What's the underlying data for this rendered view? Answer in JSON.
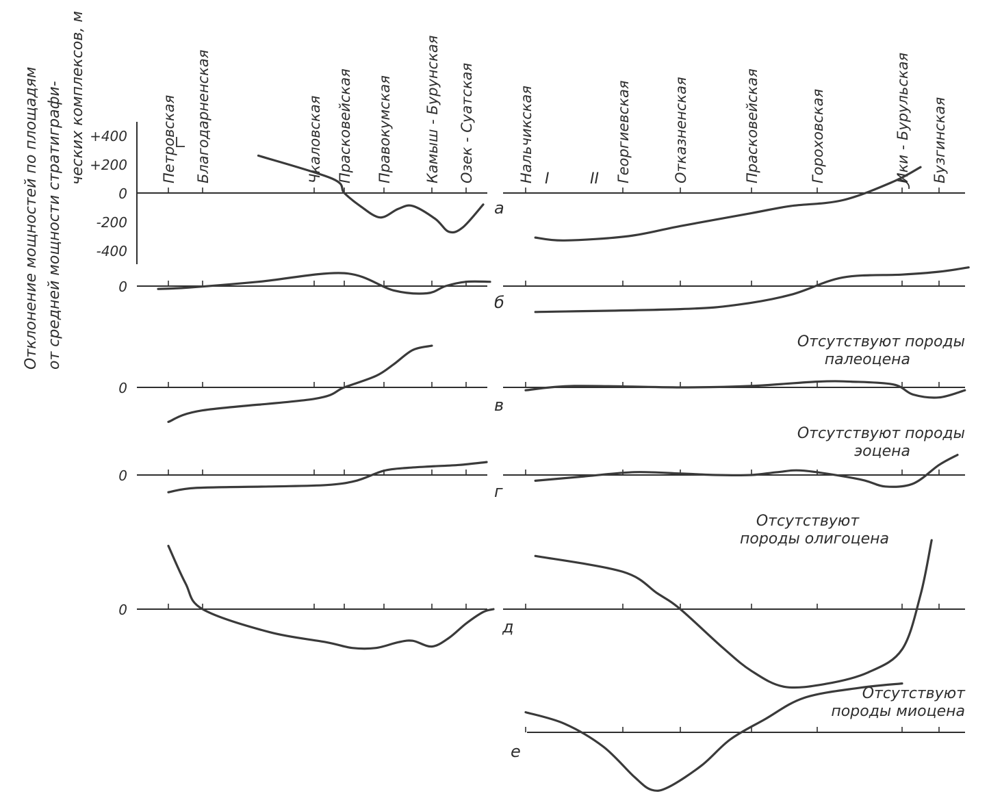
{
  "chart_data": {
    "type": "line",
    "ylabel_lines": [
      "Отклонение мощностей по площадям",
      "от средней мощности стратиграфи-",
      "ческих комплексов, м"
    ],
    "yticks": [
      "+400",
      "+200",
      "0",
      "-200",
      "-400"
    ],
    "ylim": [
      -500,
      500
    ],
    "left_sites": [
      "Петровская",
      "Благодарненская",
      "Чкаловская",
      "Прасковейская",
      "Правокумская",
      "Камыш - Бурунская",
      "Озек - Суатская"
    ],
    "right_sites": [
      "Нальчикская",
      "Георгиевская",
      "Отказненская",
      "Прасковейская",
      "Гороховская",
      "Ики - Бурульская",
      "Бузгинская"
    ],
    "roman_labels": [
      "I",
      "II"
    ],
    "zero_label": "0",
    "panels": [
      {
        "letter": "а",
        "note": "",
        "left_curve": [
          [
            1.5,
            260
          ],
          [
            2.6,
            100
          ],
          [
            3.0,
            0
          ],
          [
            3.4,
            -90
          ],
          [
            3.9,
            -170
          ],
          [
            4.3,
            -110
          ],
          [
            4.6,
            -90
          ],
          [
            5.1,
            -180
          ],
          [
            5.5,
            -270
          ],
          [
            5.9,
            -240
          ],
          [
            6.5,
            -80
          ]
        ],
        "right_curve": [
          [
            0.1,
            -310
          ],
          [
            0.4,
            -330
          ],
          [
            1.1,
            -300
          ],
          [
            2.0,
            -230
          ],
          [
            3.0,
            -140
          ],
          [
            3.6,
            -90
          ],
          [
            4.3,
            -50
          ],
          [
            4.9,
            80
          ],
          [
            5.5,
            180
          ]
        ]
      },
      {
        "letter": "б",
        "note": "",
        "left_curve": [
          [
            -0.3,
            -20
          ],
          [
            0.6,
            -10
          ],
          [
            1.5,
            30
          ],
          [
            3.0,
            90
          ],
          [
            4.2,
            -30
          ],
          [
            4.9,
            -50
          ],
          [
            5.4,
            0
          ],
          [
            6.0,
            30
          ],
          [
            6.7,
            30
          ]
        ],
        "right_curve": [
          [
            0.1,
            -180
          ],
          [
            2.0,
            -160
          ],
          [
            2.8,
            -130
          ],
          [
            3.6,
            -60
          ],
          [
            4.3,
            60
          ],
          [
            5.0,
            80
          ],
          [
            6.0,
            100
          ],
          [
            6.8,
            130
          ]
        ]
      },
      {
        "letter": "в",
        "note": "Отсутствуют породы палеоцена",
        "left_curve": [
          [
            0.0,
            -240
          ],
          [
            1.0,
            -160
          ],
          [
            2.0,
            -80
          ],
          [
            3.0,
            0
          ],
          [
            3.8,
            80
          ],
          [
            4.2,
            160
          ],
          [
            4.6,
            260
          ],
          [
            5.0,
            290
          ]
        ],
        "right_curve": [
          [
            0.0,
            -20
          ],
          [
            0.5,
            10
          ],
          [
            2.0,
            0
          ],
          [
            3.0,
            10
          ],
          [
            4.0,
            40
          ],
          [
            4.4,
            40
          ],
          [
            4.9,
            20
          ],
          [
            5.3,
            -50
          ],
          [
            6.0,
            -70
          ],
          [
            6.7,
            -20
          ]
        ]
      },
      {
        "letter": "г",
        "note": "Отсутствуют породы эоцена",
        "left_curve": [
          [
            0.0,
            -120
          ],
          [
            0.8,
            -90
          ],
          [
            1.6,
            -80
          ],
          [
            2.4,
            -70
          ],
          [
            3.3,
            -40
          ],
          [
            4.0,
            30
          ],
          [
            4.5,
            50
          ],
          [
            5.0,
            60
          ],
          [
            5.8,
            70
          ],
          [
            6.6,
            90
          ]
        ],
        "right_curve": [
          [
            0.1,
            -40
          ],
          [
            0.6,
            -10
          ],
          [
            1.2,
            20
          ],
          [
            2.0,
            10
          ],
          [
            2.5,
            0
          ],
          [
            3.0,
            0
          ],
          [
            3.4,
            20
          ],
          [
            3.8,
            30
          ],
          [
            4.5,
            -30
          ],
          [
            4.8,
            -80
          ],
          [
            5.3,
            -60
          ],
          [
            6.0,
            70
          ],
          [
            6.5,
            140
          ]
        ]
      },
      {
        "letter": "д",
        "note": "Отсутствуют породы олигоцена",
        "left_curve": [
          [
            0.0,
            440
          ],
          [
            0.5,
            180
          ],
          [
            1.0,
            0
          ],
          [
            1.6,
            -160
          ],
          [
            2.4,
            -230
          ],
          [
            3.2,
            -270
          ],
          [
            3.8,
            -270
          ],
          [
            4.3,
            -230
          ],
          [
            4.6,
            -220
          ],
          [
            5.0,
            -260
          ],
          [
            5.5,
            -200
          ],
          [
            6.0,
            -100
          ],
          [
            6.5,
            -20
          ],
          [
            6.8,
            0
          ]
        ],
        "right_curve": [
          [
            0.1,
            370
          ],
          [
            1.0,
            260
          ],
          [
            1.6,
            110
          ],
          [
            2.0,
            0
          ],
          [
            2.6,
            -270
          ],
          [
            3.0,
            -430
          ],
          [
            3.5,
            -540
          ],
          [
            4.1,
            -520
          ],
          [
            4.6,
            -440
          ],
          [
            5.0,
            -280
          ],
          [
            5.5,
            100
          ],
          [
            5.8,
            480
          ]
        ]
      },
      {
        "letter": "е",
        "note": "Отсутствуют породы миоцена",
        "left_curve": [],
        "right_curve": [
          [
            0.0,
            140
          ],
          [
            0.4,
            60
          ],
          [
            0.8,
            -100
          ],
          [
            1.2,
            -310
          ],
          [
            1.5,
            -400
          ],
          [
            1.8,
            -380
          ],
          [
            2.3,
            -230
          ],
          [
            2.7,
            -50
          ],
          [
            3.2,
            90
          ],
          [
            3.8,
            240
          ],
          [
            4.5,
            310
          ],
          [
            5.0,
            340
          ]
        ]
      }
    ]
  }
}
